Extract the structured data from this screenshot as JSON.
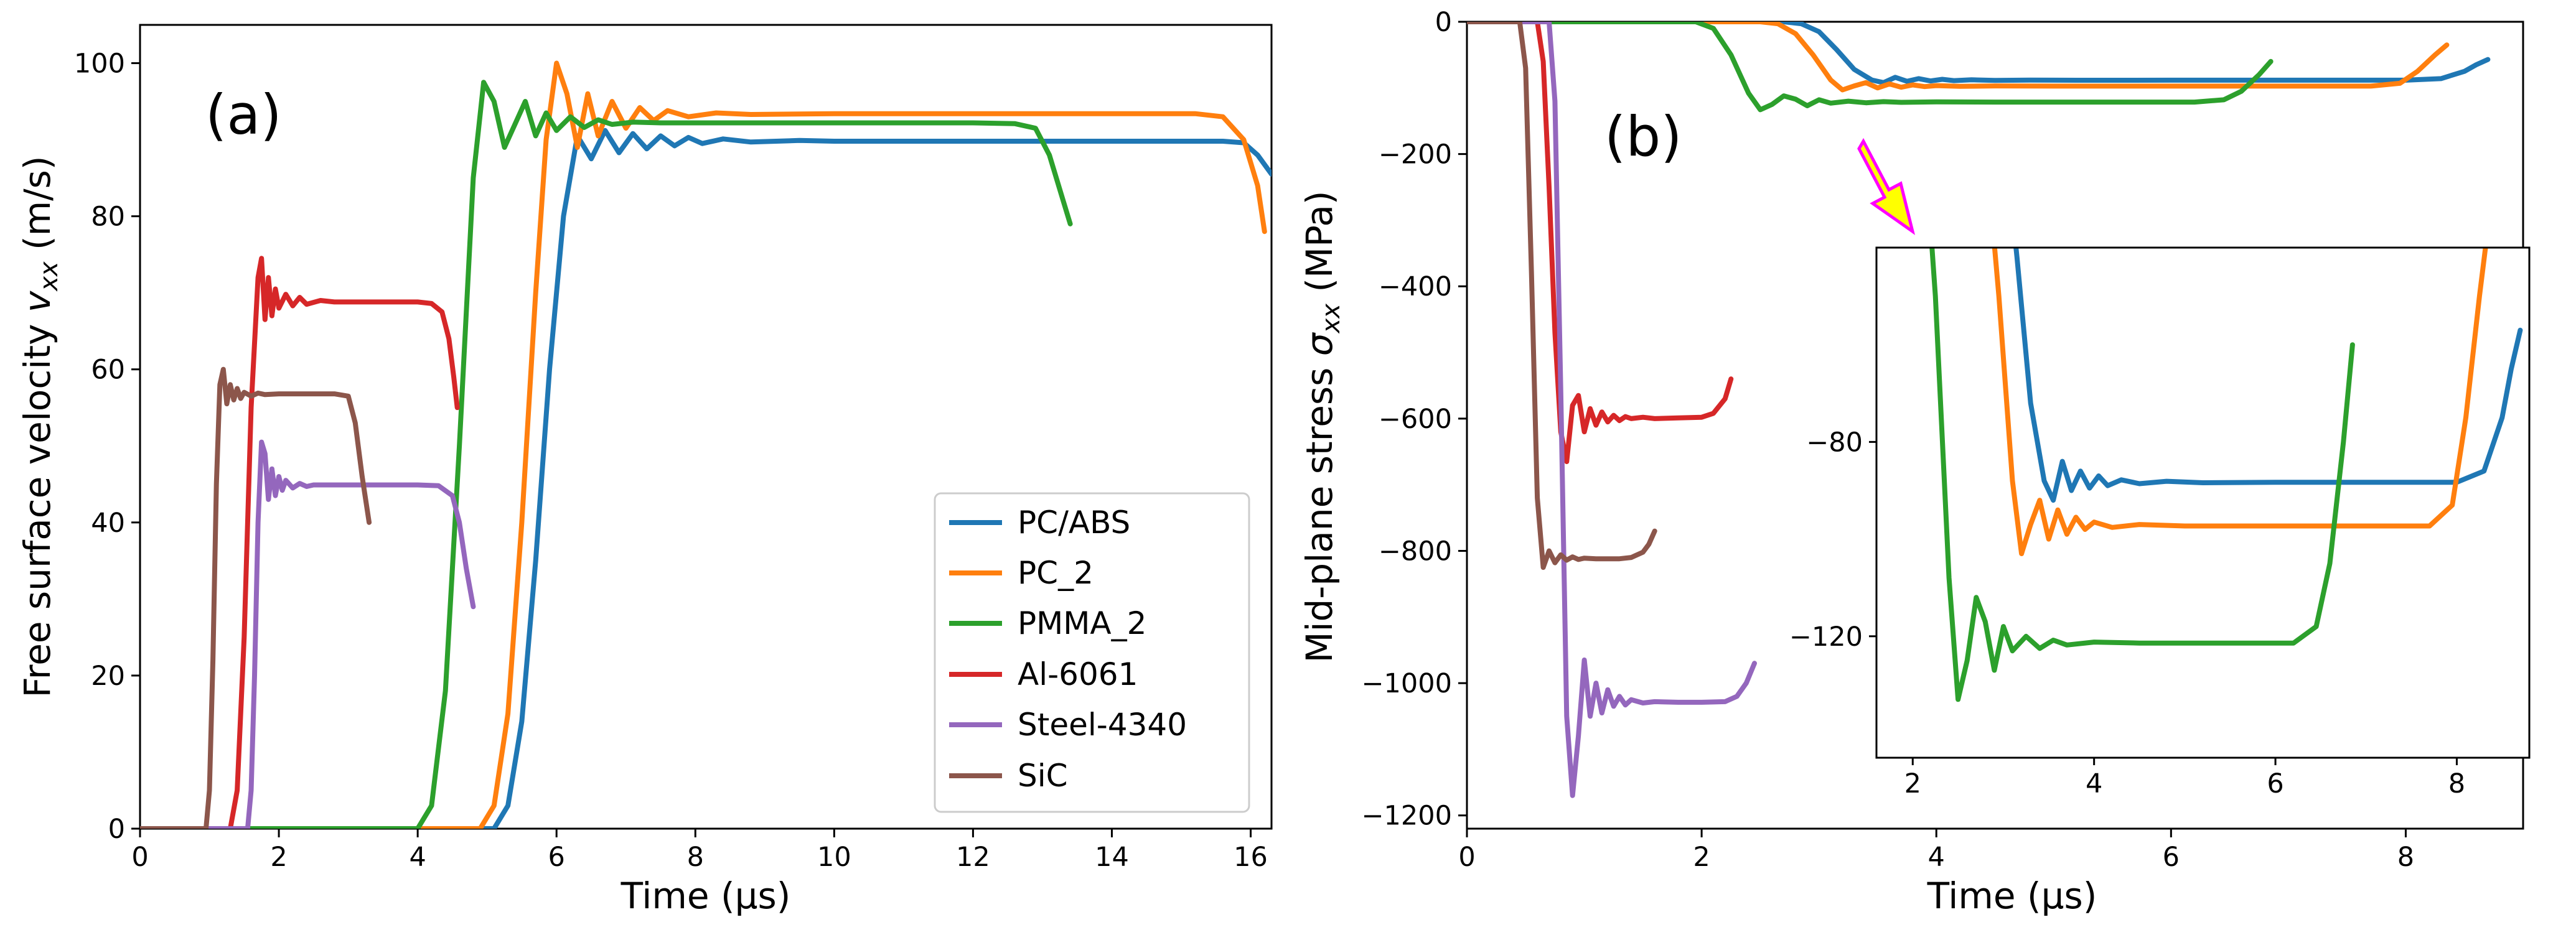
{
  "chart_data": [
    {
      "panel": "a",
      "type": "line",
      "panel_label": "(a)",
      "xlabel": "Time (μs)",
      "ylabel_main": "Free surface velocity ",
      "ylabel_var": "v",
      "ylabel_sub": "xx",
      "ylabel_unit": " (m/s)",
      "xlim": [
        0,
        16.3
      ],
      "ylim": [
        0,
        105
      ],
      "xticks": [
        0,
        2,
        4,
        6,
        8,
        10,
        12,
        14,
        16
      ],
      "yticks": [
        0,
        20,
        40,
        60,
        80,
        100
      ],
      "legend_position": "lower-right",
      "series": [
        {
          "name": "PC/ABS",
          "color": "#1f77b4",
          "x": [
            0,
            5.1,
            5.3,
            5.5,
            5.7,
            5.9,
            6.1,
            6.3,
            6.5,
            6.7,
            6.9,
            7.1,
            7.3,
            7.5,
            7.7,
            7.9,
            8.1,
            8.4,
            8.8,
            9.5,
            10,
            11,
            12,
            13,
            14,
            15,
            15.6,
            15.9,
            16.1,
            16.3
          ],
          "y": [
            0,
            0,
            3,
            14,
            35,
            60,
            80,
            90.5,
            87.5,
            91.2,
            88.3,
            90.8,
            88.8,
            90.5,
            89.2,
            90.3,
            89.5,
            90.1,
            89.7,
            89.9,
            89.8,
            89.8,
            89.8,
            89.8,
            89.8,
            89.8,
            89.8,
            89.6,
            88,
            85.5
          ]
        },
        {
          "name": "PC_2",
          "color": "#ff7f0e",
          "x": [
            0,
            4.9,
            5.1,
            5.3,
            5.5,
            5.7,
            5.85,
            6.0,
            6.15,
            6.3,
            6.45,
            6.6,
            6.8,
            7.0,
            7.2,
            7.4,
            7.6,
            7.9,
            8.3,
            8.8,
            10,
            12,
            14,
            15.2,
            15.6,
            15.9,
            16.1,
            16.2
          ],
          "y": [
            0,
            0,
            3,
            15,
            40,
            70,
            90,
            100,
            96,
            89,
            96,
            90.5,
            95,
            91.5,
            94.2,
            92.5,
            93.8,
            93,
            93.5,
            93.3,
            93.4,
            93.4,
            93.4,
            93.4,
            93,
            90,
            84,
            78
          ]
        },
        {
          "name": "PMMA_2",
          "color": "#2ca02c",
          "x": [
            0,
            4.0,
            4.2,
            4.4,
            4.6,
            4.8,
            4.95,
            5.1,
            5.25,
            5.4,
            5.55,
            5.7,
            5.85,
            6.0,
            6.2,
            6.4,
            6.6,
            6.8,
            7.1,
            7.5,
            8,
            9,
            10,
            11,
            12,
            12.6,
            12.9,
            13.1,
            13.3,
            13.4
          ],
          "y": [
            0,
            0,
            3,
            18,
            50,
            85,
            97.5,
            95,
            89,
            92,
            95,
            90.5,
            93.5,
            91.2,
            93,
            91.6,
            92.6,
            92,
            92.3,
            92.2,
            92.2,
            92.2,
            92.2,
            92.2,
            92.2,
            92.1,
            91.5,
            88,
            82,
            79
          ]
        },
        {
          "name": "Al-6061",
          "color": "#d62728",
          "x": [
            0,
            1.3,
            1.4,
            1.5,
            1.6,
            1.7,
            1.75,
            1.8,
            1.85,
            1.9,
            1.95,
            2.0,
            2.1,
            2.2,
            2.3,
            2.4,
            2.6,
            2.8,
            3.0,
            3.5,
            4.0,
            4.2,
            4.35,
            4.45,
            4.52,
            4.57
          ],
          "y": [
            0,
            0,
            5,
            25,
            55,
            72,
            74.5,
            66.5,
            72,
            67,
            70.5,
            68,
            69.8,
            68.3,
            69.4,
            68.5,
            69,
            68.8,
            68.8,
            68.8,
            68.8,
            68.6,
            67.5,
            64,
            59,
            55
          ]
        },
        {
          "name": "Steel-4340",
          "color": "#9467bd",
          "x": [
            0,
            1.55,
            1.6,
            1.65,
            1.7,
            1.75,
            1.8,
            1.85,
            1.9,
            1.95,
            2.0,
            2.05,
            2.1,
            2.2,
            2.3,
            2.4,
            2.5,
            2.7,
            3.0,
            3.5,
            4.0,
            4.3,
            4.5,
            4.6,
            4.7,
            4.8
          ],
          "y": [
            0,
            0,
            5,
            20,
            40,
            50.5,
            49,
            43,
            47,
            43.5,
            46,
            44.2,
            45.5,
            44.5,
            45.1,
            44.7,
            44.9,
            44.9,
            44.9,
            44.9,
            44.9,
            44.8,
            43.5,
            40,
            34,
            29
          ]
        },
        {
          "name": "SiC",
          "color": "#8c564b",
          "x": [
            0,
            0.95,
            1.0,
            1.05,
            1.1,
            1.15,
            1.2,
            1.25,
            1.3,
            1.35,
            1.4,
            1.45,
            1.5,
            1.6,
            1.7,
            1.8,
            2.0,
            2.5,
            2.8,
            3.0,
            3.1,
            3.2,
            3.3
          ],
          "y": [
            0,
            0,
            5,
            22,
            45,
            58,
            60,
            55.5,
            58,
            56,
            57.5,
            56.2,
            57,
            56.5,
            56.9,
            56.7,
            56.8,
            56.8,
            56.8,
            56.5,
            53,
            46,
            40
          ]
        }
      ]
    },
    {
      "panel": "b",
      "type": "line",
      "panel_label": "(b)",
      "xlabel": "Time (μs)",
      "ylabel_main": "Mid-plane stress ",
      "ylabel_var": "σ",
      "ylabel_sub": "xx",
      "ylabel_unit": " (MPa)",
      "xlim": [
        0,
        9.0
      ],
      "ylim": [
        -1220,
        0
      ],
      "xticks": [
        0,
        2,
        4,
        6,
        8
      ],
      "yticks": [
        0,
        -200,
        -400,
        -600,
        -800,
        -1000,
        -1200
      ],
      "series": [
        {
          "name": "PC/ABS",
          "color": "#1f77b4",
          "x": [
            0,
            2.7,
            2.85,
            3.0,
            3.15,
            3.3,
            3.45,
            3.55,
            3.65,
            3.75,
            3.85,
            3.95,
            4.05,
            4.15,
            4.3,
            4.5,
            4.8,
            5.2,
            6,
            7,
            8,
            8.3,
            8.5,
            8.6,
            8.7
          ],
          "y": [
            0,
            0,
            -3,
            -15,
            -42,
            -72,
            -88,
            -92,
            -84,
            -90,
            -86,
            -89.5,
            -87,
            -89,
            -87.8,
            -88.6,
            -88.1,
            -88.4,
            -88.3,
            -88.3,
            -88.3,
            -86,
            -75,
            -65,
            -57
          ]
        },
        {
          "name": "PC_2",
          "color": "#ff7f0e",
          "x": [
            0,
            2.5,
            2.65,
            2.8,
            2.95,
            3.1,
            3.2,
            3.3,
            3.4,
            3.5,
            3.6,
            3.7,
            3.8,
            3.9,
            4.0,
            4.2,
            4.5,
            5,
            6,
            7,
            7.7,
            7.95,
            8.1,
            8.25,
            8.35
          ],
          "y": [
            0,
            0,
            -3,
            -18,
            -50,
            -88,
            -103,
            -97,
            -92,
            -100,
            -94,
            -99,
            -95.5,
            -98,
            -96.5,
            -97.6,
            -97,
            -97.3,
            -97.3,
            -97.3,
            -97.3,
            -93,
            -75,
            -50,
            -35
          ]
        },
        {
          "name": "PMMA_2",
          "color": "#2ca02c",
          "x": [
            0,
            1.95,
            2.1,
            2.25,
            2.4,
            2.5,
            2.6,
            2.7,
            2.8,
            2.9,
            3.0,
            3.1,
            3.25,
            3.4,
            3.55,
            3.7,
            4.0,
            4.5,
            5,
            5.6,
            6.2,
            6.45,
            6.6,
            6.75,
            6.85
          ],
          "y": [
            0,
            0,
            -10,
            -50,
            -108,
            -133,
            -125,
            -112,
            -117,
            -127,
            -118,
            -123,
            -120,
            -122.5,
            -120.8,
            -121.8,
            -121.2,
            -121.4,
            -121.4,
            -121.4,
            -121.4,
            -118,
            -105,
            -80,
            -60
          ]
        },
        {
          "name": "Al-6061",
          "color": "#d62728",
          "x": [
            0,
            0.6,
            0.65,
            0.7,
            0.75,
            0.8,
            0.85,
            0.9,
            0.95,
            1.0,
            1.05,
            1.1,
            1.15,
            1.2,
            1.25,
            1.3,
            1.35,
            1.4,
            1.5,
            1.6,
            1.8,
            2.0,
            2.1,
            2.2,
            2.25
          ],
          "y": [
            0,
            0,
            -60,
            -250,
            -470,
            -620,
            -665,
            -580,
            -565,
            -620,
            -585,
            -610,
            -590,
            -605,
            -595,
            -603,
            -597,
            -600,
            -598,
            -600,
            -599,
            -598,
            -592,
            -570,
            -540
          ]
        },
        {
          "name": "Steel-4340",
          "color": "#9467bd",
          "x": [
            0,
            0.7,
            0.75,
            0.8,
            0.85,
            0.9,
            0.95,
            1.0,
            1.05,
            1.1,
            1.15,
            1.2,
            1.25,
            1.3,
            1.35,
            1.4,
            1.5,
            1.6,
            1.8,
            2.0,
            2.2,
            2.3,
            2.38,
            2.45
          ],
          "y": [
            0,
            0,
            -120,
            -560,
            -1050,
            -1170,
            -1080,
            -965,
            -1050,
            -1000,
            -1045,
            -1010,
            -1035,
            -1020,
            -1033,
            -1025,
            -1030,
            -1028,
            -1029,
            -1029,
            -1028,
            -1020,
            -1000,
            -970
          ]
        },
        {
          "name": "SiC",
          "color": "#8c564b",
          "x": [
            0,
            0.45,
            0.5,
            0.55,
            0.6,
            0.65,
            0.7,
            0.75,
            0.8,
            0.85,
            0.9,
            0.95,
            1.0,
            1.1,
            1.2,
            1.3,
            1.4,
            1.5,
            1.55,
            1.6
          ],
          "y": [
            0,
            0,
            -70,
            -380,
            -720,
            -825,
            -800,
            -818,
            -806,
            -814,
            -809,
            -813,
            -811,
            -812,
            -812,
            -812,
            -810,
            -802,
            -790,
            -770
          ]
        }
      ],
      "annotation": {
        "type": "arrow",
        "fill": "#ffff00",
        "stroke": "#ff00ff",
        "x": 3.4,
        "y": -165
      },
      "inset": {
        "xlim": [
          1.6,
          8.8
        ],
        "ylim": [
          -145,
          -40
        ],
        "xticks": [
          2,
          4,
          6,
          8
        ],
        "yticks": [
          -80,
          -120
        ],
        "show_top_tick_label": false,
        "data_source": "same series as panel (b), time axis zoomed, all curves clipped to the inset range"
      }
    }
  ],
  "legend": {
    "entries": [
      "PC/ABS",
      "PC_2",
      "PMMA_2",
      "Al-6061",
      "Steel-4340",
      "SiC"
    ]
  }
}
